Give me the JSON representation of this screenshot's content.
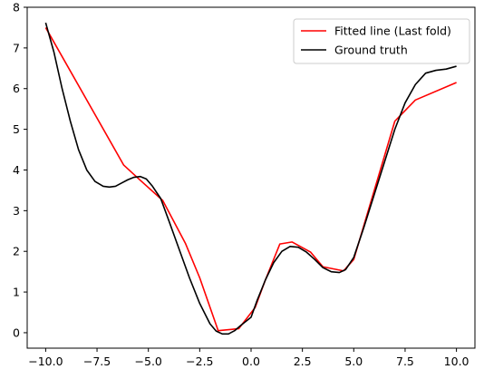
{
  "chart_data": {
    "type": "line",
    "title": "",
    "xlabel": "",
    "ylabel": "",
    "xlim": [
      -10.9,
      10.9
    ],
    "ylim": [
      -0.38,
      8.0
    ],
    "xticks": [
      -10.0,
      -7.5,
      -5.0,
      -2.5,
      0.0,
      2.5,
      5.0,
      7.5,
      10.0
    ],
    "xtick_labels": [
      "−10.0",
      "−7.5",
      "−5.0",
      "−2.5",
      "0.0",
      "2.5",
      "5.0",
      "7.5",
      "10.0"
    ],
    "yticks": [
      0,
      1,
      2,
      3,
      4,
      5,
      6,
      7,
      8
    ],
    "ytick_labels": [
      "0",
      "1",
      "2",
      "3",
      "4",
      "5",
      "6",
      "7",
      "8"
    ],
    "grid": false,
    "legend_position": "top-right",
    "series": [
      {
        "name": "Fitted line (Last fold)",
        "color": "#ff0000",
        "x": [
          -10.0,
          -6.2,
          -5.4,
          -4.3,
          -3.2,
          -2.5,
          -1.6,
          -0.6,
          0.2,
          0.7,
          1.4,
          2.0,
          2.9,
          3.5,
          4.5,
          5.0,
          7.0,
          8.0,
          10.0
        ],
        "y": [
          7.5,
          4.12,
          3.75,
          3.25,
          2.2,
          1.35,
          0.05,
          0.1,
          0.62,
          1.3,
          2.18,
          2.23,
          1.98,
          1.62,
          1.52,
          1.8,
          5.2,
          5.72,
          6.15
        ]
      },
      {
        "name": "Ground truth",
        "color": "#000000",
        "x": [
          -10.0,
          -9.6,
          -9.2,
          -8.8,
          -8.4,
          -8.0,
          -7.6,
          -7.2,
          -6.9,
          -6.6,
          -6.3,
          -6.0,
          -5.7,
          -5.4,
          -5.1,
          -4.8,
          -4.4,
          -4.0,
          -3.5,
          -3.0,
          -2.5,
          -2.0,
          -1.7,
          -1.4,
          -1.1,
          -0.8,
          -0.5,
          -0.2,
          0.0,
          0.3,
          0.7,
          1.1,
          1.5,
          1.9,
          2.3,
          2.7,
          3.1,
          3.5,
          3.9,
          4.3,
          4.6,
          5.0,
          5.5,
          6.0,
          6.5,
          7.0,
          7.5,
          8.0,
          8.5,
          9.0,
          9.5,
          10.0
        ],
        "y": [
          7.62,
          6.9,
          6.0,
          5.2,
          4.5,
          4.0,
          3.72,
          3.6,
          3.58,
          3.6,
          3.68,
          3.76,
          3.82,
          3.84,
          3.78,
          3.6,
          3.3,
          2.75,
          2.05,
          1.35,
          0.72,
          0.22,
          0.04,
          -0.03,
          -0.03,
          0.05,
          0.18,
          0.3,
          0.38,
          0.8,
          1.3,
          1.72,
          2.0,
          2.12,
          2.1,
          1.98,
          1.8,
          1.6,
          1.5,
          1.48,
          1.55,
          1.85,
          2.6,
          3.4,
          4.2,
          5.0,
          5.65,
          6.1,
          6.38,
          6.45,
          6.48,
          6.55
        ]
      }
    ]
  }
}
